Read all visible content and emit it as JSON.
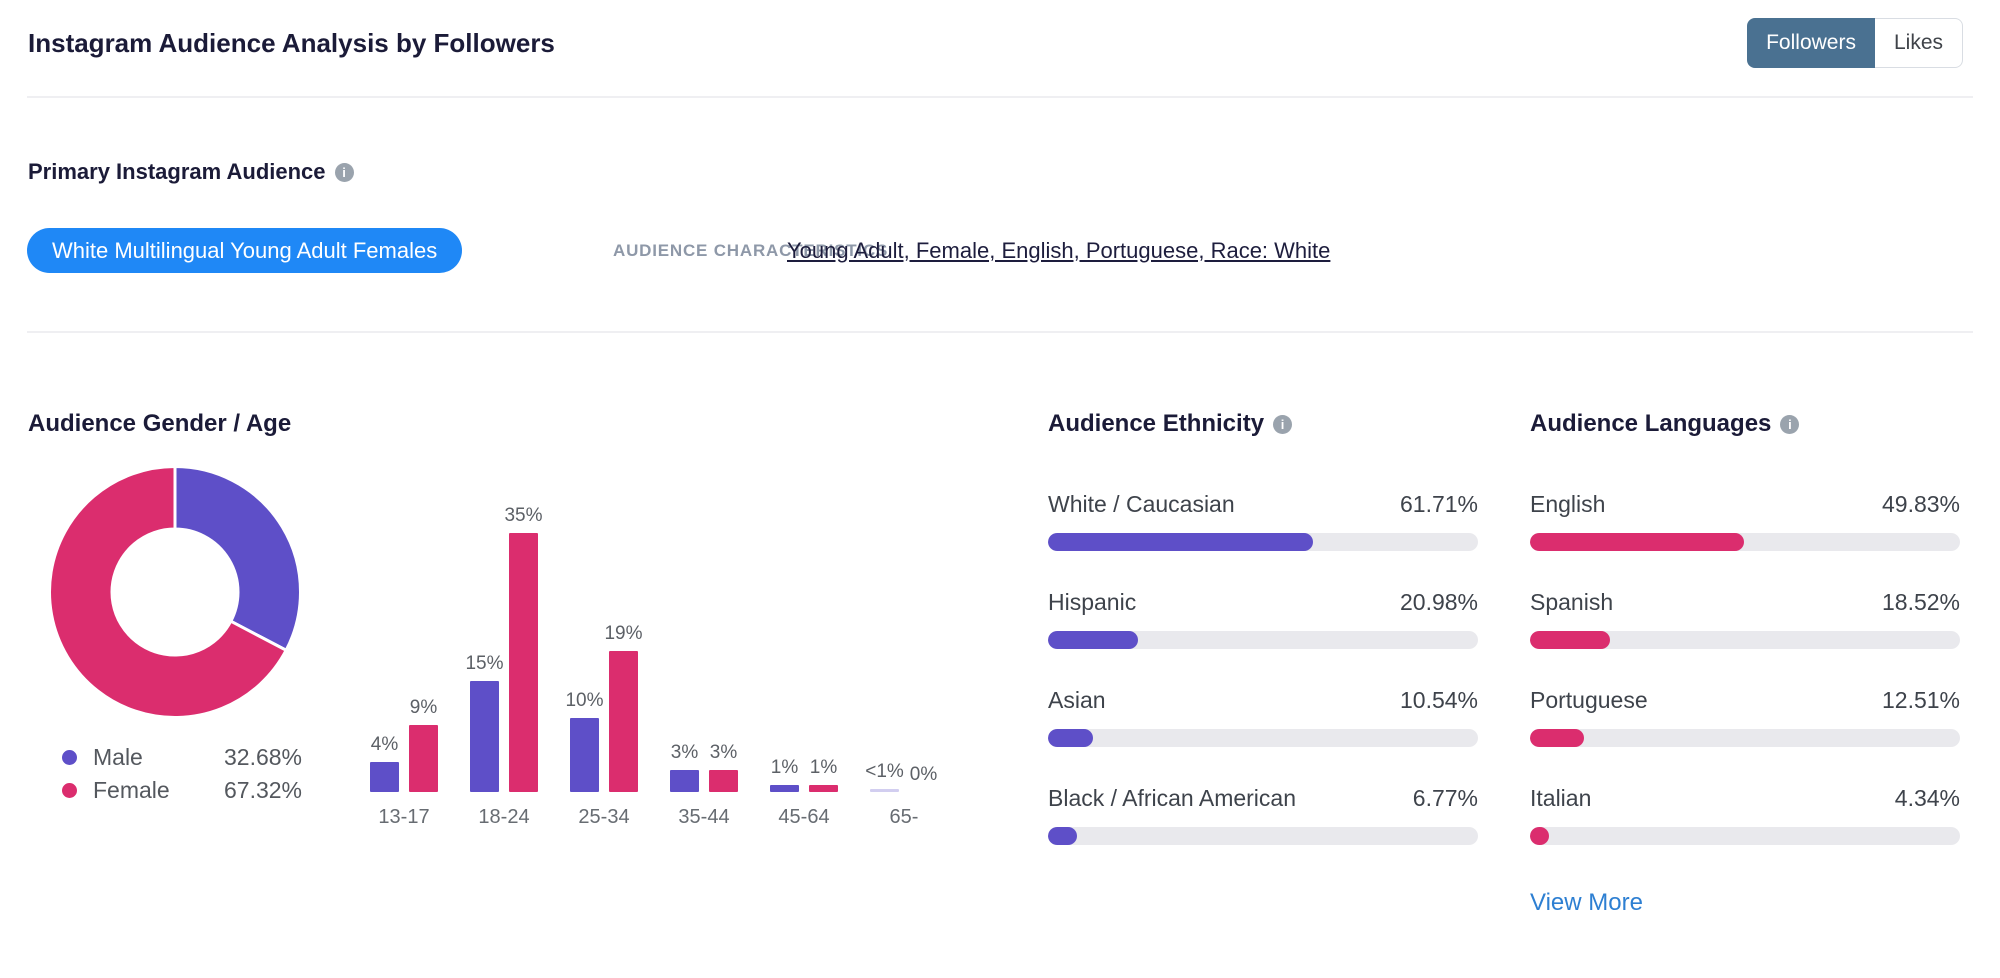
{
  "header": {
    "title": "Instagram Audience Analysis by Followers",
    "toggle": {
      "followers_label": "Followers",
      "likes_label": "Likes",
      "selected": "Followers"
    }
  },
  "icons": {
    "info_glyph": "i"
  },
  "colors": {
    "purple": "#5e4fc8",
    "pink": "#db2d6e",
    "pill_blue": "#1f88f6",
    "toggle_slate": "#4a7191",
    "link_blue": "#2d7fd2",
    "track_gray": "#e9e9ed"
  },
  "primary_audience": {
    "heading": "Primary Instagram Audience",
    "pill_label": "White Multilingual Young Adult Females",
    "characteristics_label": "AUDIENCE CHARACTERISTICS",
    "characteristics_value": "Young Adult, Female, English, Portuguese, Race: White"
  },
  "gender_age": {
    "heading": "Audience Gender / Age",
    "legend": [
      {
        "label": "Male",
        "value": "32.68%"
      },
      {
        "label": "Female",
        "value": "67.32%"
      }
    ]
  },
  "ethnicity": {
    "heading": "Audience Ethnicity",
    "rows": [
      {
        "label": "White / Caucasian",
        "value": "61.71%",
        "pct": 61.71
      },
      {
        "label": "Hispanic",
        "value": "20.98%",
        "pct": 20.98
      },
      {
        "label": "Asian",
        "value": "10.54%",
        "pct": 10.54
      },
      {
        "label": "Black / African American",
        "value": "6.77%",
        "pct": 6.77
      }
    ]
  },
  "languages": {
    "heading": "Audience Languages",
    "rows": [
      {
        "label": "English",
        "value": "49.83%",
        "pct": 49.83
      },
      {
        "label": "Spanish",
        "value": "18.52%",
        "pct": 18.52
      },
      {
        "label": "Portuguese",
        "value": "12.51%",
        "pct": 12.51
      },
      {
        "label": "Italian",
        "value": "4.34%",
        "pct": 4.34
      }
    ],
    "view_more_label": "View More"
  },
  "chart_data": [
    {
      "type": "pie",
      "title": "Audience Gender split (donut)",
      "labels": [
        "Male",
        "Female"
      ],
      "values": [
        32.68,
        67.32
      ],
      "colors": [
        "#5e4fc8",
        "#db2d6e"
      ],
      "legend_position": "bottom-left"
    },
    {
      "type": "bar",
      "title": "Audience Age by Gender",
      "categories": [
        "13-17",
        "18-24",
        "25-34",
        "35-44",
        "45-64",
        "65-"
      ],
      "series": [
        {
          "name": "Male",
          "color": "#5e4fc8",
          "values": [
            4,
            15,
            10,
            3,
            1,
            0.4
          ],
          "labels": [
            "4%",
            "15%",
            "10%",
            "3%",
            "1%",
            "<1%"
          ]
        },
        {
          "name": "Female",
          "color": "#db2d6e",
          "values": [
            9,
            35,
            19,
            3,
            1,
            0
          ],
          "labels": [
            "9%",
            "35%",
            "19%",
            "3%",
            "1%",
            "0%"
          ]
        }
      ],
      "xlabel": "",
      "ylabel": "",
      "ylim": [
        0,
        35
      ],
      "grid": false,
      "value_labels_above_bars": true
    }
  ]
}
